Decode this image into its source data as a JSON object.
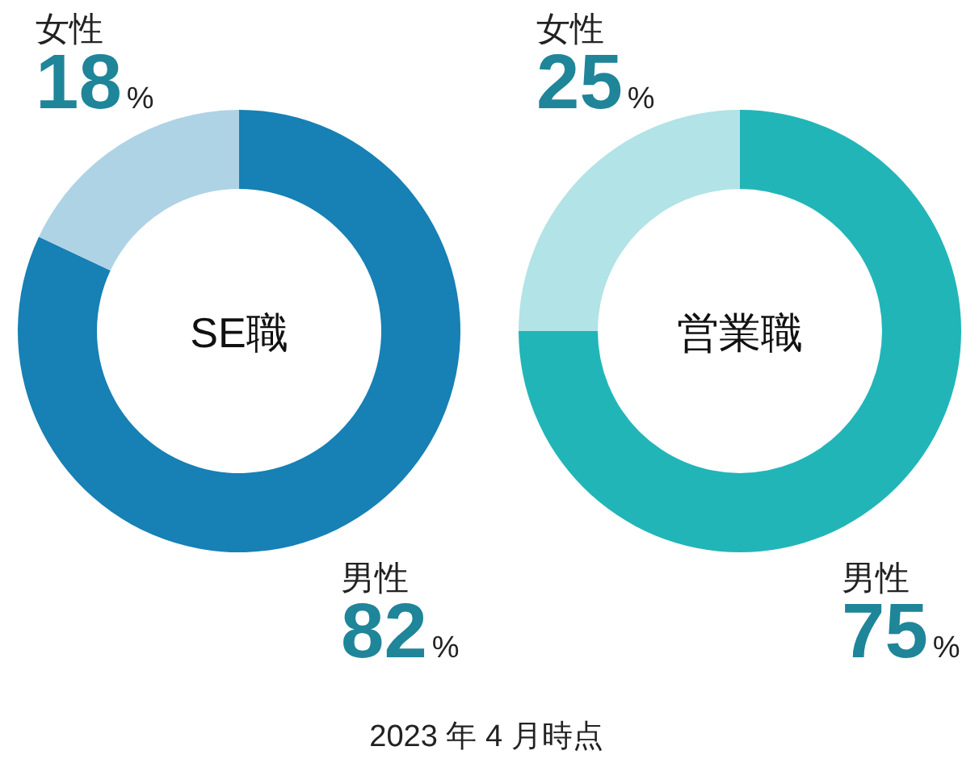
{
  "chart_data": [
    {
      "type": "donut",
      "title": "SE職",
      "categories": [
        "男性",
        "女性"
      ],
      "values": [
        82,
        18
      ],
      "colors": [
        "#1780b4",
        "#aed3e5"
      ],
      "value_labels": [
        "82%",
        "18%"
      ]
    },
    {
      "type": "donut",
      "title": "営業職",
      "categories": [
        "男性",
        "女性"
      ],
      "values": [
        75,
        25
      ],
      "colors": [
        "#22b5b8",
        "#b2e3e6"
      ],
      "value_labels": [
        "75%",
        "25%"
      ],
      "annotations": [
        "2023 年 4 月時点"
      ]
    }
  ]
}
